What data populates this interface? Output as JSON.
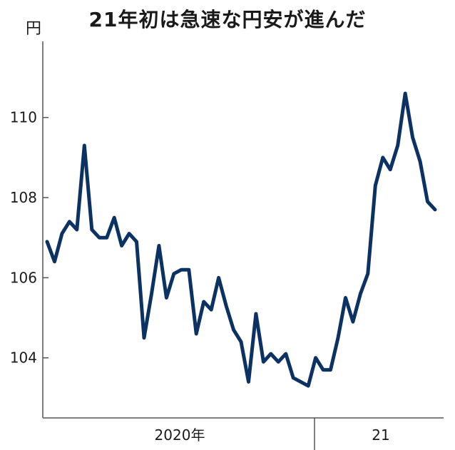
{
  "title": "21年初は急速な円安が進んだ",
  "unit": "円",
  "chart_data": {
    "type": "line",
    "title": "21年初は急速な円安が進んだ",
    "ylabel": "円",
    "ylim": [
      102.5,
      111.9
    ],
    "yticks": [
      104,
      106,
      108,
      110
    ],
    "year_labels": [
      "2020年",
      "21"
    ],
    "grid": false,
    "series": [
      {
        "color": "#0c3263",
        "values": [
          106.9,
          106.4,
          107.1,
          107.4,
          107.2,
          109.3,
          107.2,
          107.0,
          107.0,
          107.5,
          106.8,
          107.1,
          106.9,
          104.5,
          105.6,
          106.8,
          105.5,
          106.1,
          106.2,
          106.2,
          104.6,
          105.4,
          105.2,
          106.0,
          105.3,
          104.7,
          104.4,
          103.4,
          105.1,
          103.9,
          104.1,
          103.9,
          104.1,
          103.5,
          103.4,
          103.3,
          104.0,
          103.7,
          103.7,
          104.5,
          105.5,
          104.9,
          105.6,
          106.1,
          108.3,
          109.0,
          108.7,
          109.3,
          110.6,
          109.5,
          108.9,
          107.9,
          107.7
        ]
      }
    ]
  }
}
